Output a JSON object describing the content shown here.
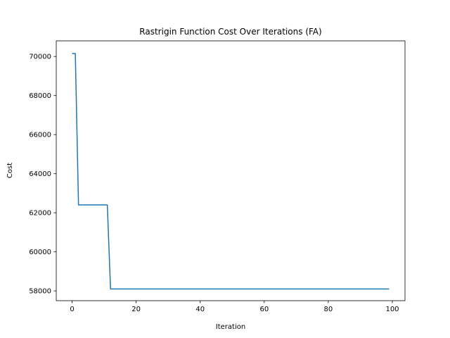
{
  "chart_data": {
    "type": "line",
    "title": "Rastrigin Function Cost Over Iterations (FA)",
    "xlabel": "Iteration",
    "ylabel": "Cost",
    "xlim": [
      -4.95,
      103.95
    ],
    "ylim": [
      57500,
      70800
    ],
    "xticks": [
      0,
      20,
      40,
      60,
      80,
      100
    ],
    "yticks": [
      58000,
      60000,
      62000,
      64000,
      66000,
      68000,
      70000
    ],
    "grid": false,
    "series": [
      {
        "color": "#1f77b4",
        "x": [
          0,
          1,
          2,
          11,
          12,
          99
        ],
        "y": [
          70150,
          70150,
          62400,
          62400,
          58100,
          58100
        ]
      }
    ]
  }
}
